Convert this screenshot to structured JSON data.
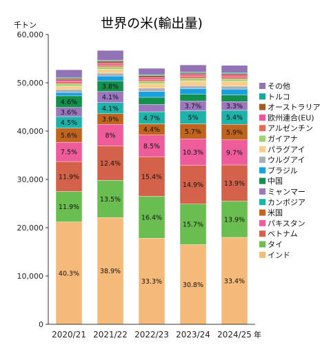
{
  "chart_data": {
    "type": "bar",
    "stacked": true,
    "title": "世界の米(輸出量)",
    "yunit": "千トン",
    "xunit": "年",
    "ylim": [
      0,
      60000
    ],
    "yticks": [
      0,
      10000,
      20000,
      30000,
      40000,
      50000,
      60000
    ],
    "ytick_labels": [
      "0",
      "10,000",
      "20,000",
      "30,000",
      "40,000",
      "50,000",
      "60,000"
    ],
    "grid": false,
    "legend_position": "right",
    "categories": [
      "2020/21",
      "2021/22",
      "2022/23",
      "2023/24",
      "2024/25"
    ],
    "series": [
      {
        "name": "インド",
        "color": "#f5b97a",
        "values": [
          21200,
          22100,
          17800,
          16500,
          18000
        ],
        "labels": [
          "40.3%",
          "38.9%",
          "33.3%",
          "30.8%",
          "33.4%"
        ]
      },
      {
        "name": "タイ",
        "color": "#6abe4f",
        "values": [
          6300,
          7700,
          8700,
          8400,
          7500
        ],
        "labels": [
          "11.9%",
          "13.5%",
          "16.4%",
          "15.7%",
          "13.9%"
        ]
      },
      {
        "name": "ベトナム",
        "color": "#d4624a",
        "values": [
          6200,
          7100,
          8200,
          8000,
          7500
        ],
        "labels": [
          "11.9%",
          "12.4%",
          "15.4%",
          "14.9%",
          "13.9%"
        ]
      },
      {
        "name": "パキスタン",
        "color": "#ee5c9c",
        "values": [
          4000,
          4500,
          4500,
          5500,
          5200
        ],
        "labels": [
          "7.5%",
          "8%",
          "8.5%",
          "10.3%",
          "9.7%"
        ]
      },
      {
        "name": "米国",
        "color": "#c0641e",
        "values": [
          2900,
          2200,
          2300,
          3100,
          3200
        ],
        "labels": [
          "5.6%",
          "3.9%",
          "4.4%",
          "5.7%",
          "5.9%"
        ]
      },
      {
        "name": "カンボジア",
        "color": "#1db3a8",
        "values": [
          2400,
          2300,
          2500,
          2700,
          2900
        ],
        "labels": [
          "4.5%",
          "4.1%",
          "4.7%",
          "5%",
          "5.4%"
        ]
      },
      {
        "name": "ミャンマー",
        "color": "#9c77c0",
        "values": [
          1900,
          2300,
          1500,
          2000,
          1800
        ],
        "labels": [
          "3.6%",
          "4.1%",
          "",
          "3.7%",
          "3.3%"
        ]
      },
      {
        "name": "中国",
        "color": "#13904b",
        "values": [
          2400,
          2200,
          1500,
          1400,
          1400
        ],
        "labels": [
          "4.6%",
          "3.8%",
          "",
          "",
          ""
        ]
      },
      {
        "name": "ブラジル",
        "color": "#1a9fe0",
        "values": [
          700,
          1000,
          1200,
          1200,
          1200
        ],
        "labels": [
          "",
          "",
          "",
          "",
          ""
        ]
      },
      {
        "name": "ウルグアイ",
        "color": "#a9b0b6",
        "values": [
          600,
          600,
          700,
          600,
          600
        ],
        "labels": [
          "",
          "",
          "",
          "",
          ""
        ]
      },
      {
        "name": "パラグアイ",
        "color": "#f9cd8c",
        "values": [
          700,
          800,
          900,
          1000,
          1000
        ],
        "labels": [
          "",
          "",
          "",
          "",
          ""
        ]
      },
      {
        "name": "ガイアナ",
        "color": "#a2d372",
        "values": [
          500,
          500,
          500,
          500,
          500
        ],
        "labels": [
          "",
          "",
          "",
          "",
          ""
        ]
      },
      {
        "name": "アルゼンチン",
        "color": "#e46a55",
        "values": [
          400,
          400,
          400,
          400,
          400
        ],
        "labels": [
          "",
          "",
          "",
          "",
          ""
        ]
      },
      {
        "name": "欧州連合(EU)",
        "color": "#e8559a",
        "values": [
          400,
          400,
          400,
          400,
          400
        ],
        "labels": [
          "",
          "",
          "",
          "",
          ""
        ]
      },
      {
        "name": "オーストラリア",
        "color": "#a05a1e",
        "values": [
          300,
          400,
          400,
          300,
          300
        ],
        "labels": [
          "",
          "",
          "",
          "",
          ""
        ]
      },
      {
        "name": "トルコ",
        "color": "#1ba59c",
        "values": [
          200,
          200,
          200,
          200,
          200
        ],
        "labels": [
          "",
          "",
          "",
          "",
          ""
        ]
      },
      {
        "name": "その他",
        "color": "#9273b5",
        "values": [
          1600,
          2000,
          1300,
          1500,
          1500
        ],
        "labels": [
          "",
          "",
          "",
          "",
          ""
        ]
      }
    ]
  }
}
